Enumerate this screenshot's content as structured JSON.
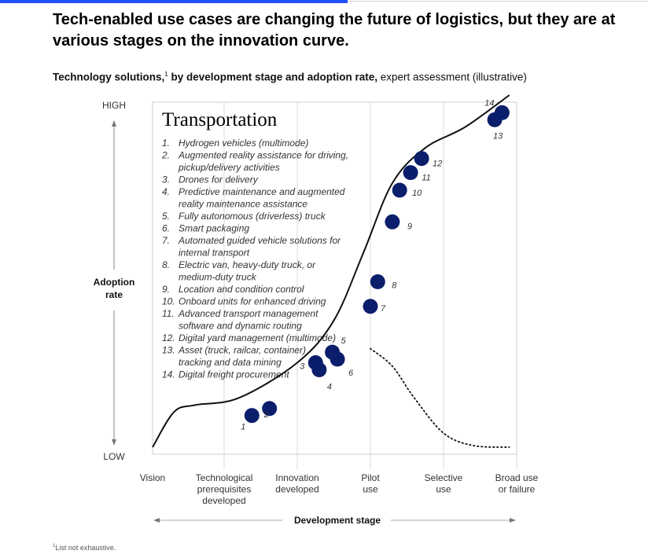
{
  "headline": "Tech-enabled use cases are changing the future of logistics, but they are at various stages on the innovation curve.",
  "subtitle": {
    "bold": "Technology solutions,",
    "sup": "1",
    "bold2": " by development stage and adoption rate,",
    "regular": " expert assessment (illustrative)"
  },
  "footnote": {
    "sup": "1",
    "text": "List not exhaustive."
  },
  "chart_data": {
    "type": "line",
    "title": "Transportation",
    "ylabel": "Adoption rate",
    "y_ticks": [
      "LOW",
      "HIGH"
    ],
    "xlabel": "Development stage",
    "x_ticks": [
      "Vision",
      "Technological prerequisites developed",
      "Innovation developed",
      "Pilot use",
      "Selective use",
      "Broad use or failure"
    ],
    "xlim": [
      0,
      5
    ],
    "ylim": [
      0,
      1
    ],
    "grid": true,
    "legend": "inside top-left",
    "curve": [
      [
        0,
        0.02
      ],
      [
        0.3,
        0.12
      ],
      [
        0.6,
        0.14
      ],
      [
        1.2,
        0.16
      ],
      [
        2.0,
        0.26
      ],
      [
        2.5,
        0.38
      ],
      [
        2.9,
        0.57
      ],
      [
        3.3,
        0.77
      ],
      [
        3.75,
        0.87
      ],
      [
        4.3,
        0.93
      ],
      [
        4.9,
        1.02
      ]
    ],
    "failure_curve": [
      [
        3.0,
        0.3
      ],
      [
        3.3,
        0.25
      ],
      [
        3.6,
        0.16
      ],
      [
        4.0,
        0.06
      ],
      [
        4.4,
        0.025
      ],
      [
        4.9,
        0.02
      ]
    ],
    "points": [
      {
        "id": "1",
        "label": "Hydrogen vehicles (multimode)",
        "x": 1.38,
        "y": 0.11
      },
      {
        "id": "2",
        "label": "Augmented reality assistance for driving, pickup/delivery activities",
        "x": 1.62,
        "y": 0.13
      },
      {
        "id": "3",
        "label": "Drones for delivery",
        "x": 2.25,
        "y": 0.26
      },
      {
        "id": "4",
        "label": "Predictive maintenance and augmented reality maintenance assistance",
        "x": 2.3,
        "y": 0.24
      },
      {
        "id": "5",
        "label": "Fully autonomous (driverless) truck",
        "x": 2.48,
        "y": 0.29
      },
      {
        "id": "6",
        "label": "Smart packaging",
        "x": 2.55,
        "y": 0.27
      },
      {
        "id": "7",
        "label": "Automated guided vehicle solutions for internal transport",
        "x": 3.0,
        "y": 0.42
      },
      {
        "id": "8",
        "label": "Electric van, heavy-duty truck, or medium-duty truck",
        "x": 3.1,
        "y": 0.49
      },
      {
        "id": "9",
        "label": "Location and condition control",
        "x": 3.3,
        "y": 0.66
      },
      {
        "id": "10",
        "label": "Onboard units for enhanced driving",
        "x": 3.4,
        "y": 0.75
      },
      {
        "id": "11",
        "label": "Advanced transport management software and dynamic routing",
        "x": 3.55,
        "y": 0.8
      },
      {
        "id": "12",
        "label": "Digital yard management (multimode)",
        "x": 3.7,
        "y": 0.84
      },
      {
        "id": "13",
        "label": "Asset (truck, railcar, container) tracking and data mining",
        "x": 4.7,
        "y": 0.95
      },
      {
        "id": "14",
        "label": "Digital freight procurement",
        "x": 4.8,
        "y": 0.97
      }
    ]
  }
}
